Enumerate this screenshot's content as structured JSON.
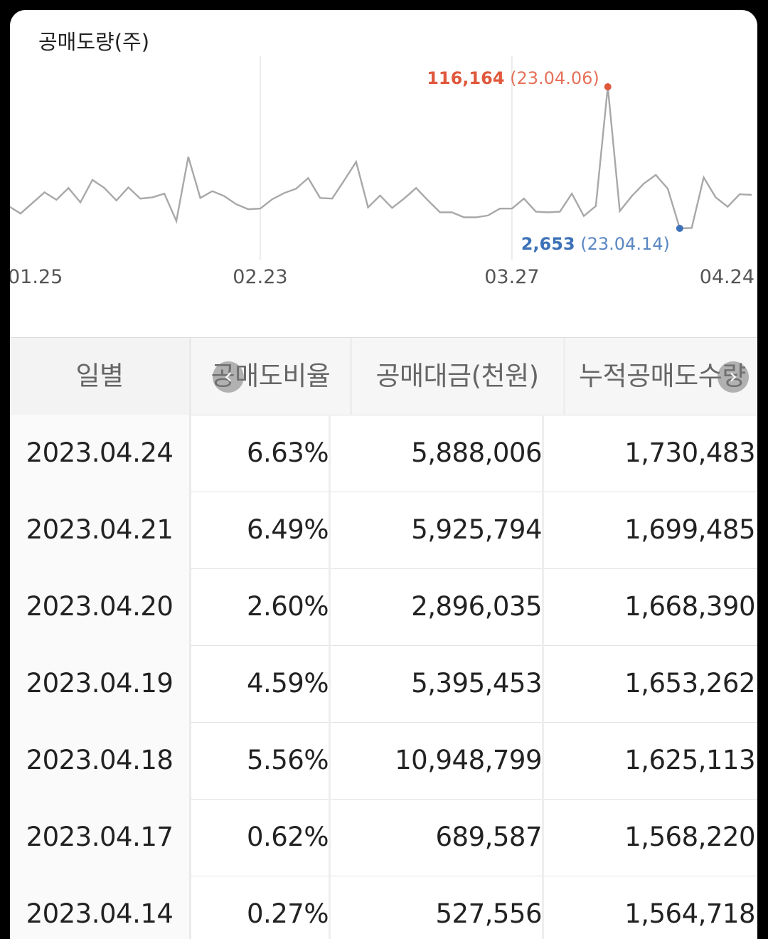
{
  "chart": {
    "title": "공매도량(주)",
    "x_ticks": [
      "01.25",
      "02.23",
      "03.27",
      "04.24"
    ],
    "max_annotation": {
      "value": "116,164",
      "date": "(23.04.06)",
      "color": "#e0583c"
    },
    "min_annotation": {
      "value": "2,653",
      "date": "(23.04.14)",
      "color": "#3d72b8"
    },
    "line_color": "#a8a8a8"
  },
  "chart_data": {
    "type": "line",
    "title": "공매도량(주)",
    "x_start": "01.25",
    "x_end": "04.24",
    "xticks": [
      "01.25",
      "02.23",
      "03.27",
      "04.24"
    ],
    "max_point": {
      "x": "23.04.06",
      "y": 116164
    },
    "min_point": {
      "x": "23.04.14",
      "y": 2653
    },
    "values": [
      20500,
      14500,
      23000,
      31500,
      25500,
      35000,
      23500,
      41500,
      35000,
      25000,
      35500,
      26500,
      27500,
      30500,
      8500,
      60000,
      27000,
      32500,
      28500,
      22000,
      18000,
      18500,
      26000,
      31000,
      34500,
      43000,
      27000,
      26500,
      41000,
      56000,
      19500,
      29000,
      19000,
      26500,
      35000,
      25000,
      15500,
      15500,
      11500,
      11500,
      13000,
      18500,
      18500,
      26500,
      16000,
      15500,
      16000,
      30500,
      12500,
      20500,
      116164,
      16500,
      28500,
      38500,
      45500,
      34500,
      2653,
      3000,
      43500,
      27500,
      20000,
      30000,
      29500
    ]
  },
  "table": {
    "headers": [
      "일별",
      "공매도비율",
      "공매대금(천원)",
      "누적공매도수량"
    ],
    "rows": [
      [
        "2023.04.24",
        "6.63%",
        "5,888,006",
        "1,730,483"
      ],
      [
        "2023.04.21",
        "6.49%",
        "5,925,794",
        "1,699,485"
      ],
      [
        "2023.04.20",
        "2.60%",
        "2,896,035",
        "1,668,390"
      ],
      [
        "2023.04.19",
        "4.59%",
        "5,395,453",
        "1,653,262"
      ],
      [
        "2023.04.18",
        "5.56%",
        "10,948,799",
        "1,625,113"
      ],
      [
        "2023.04.17",
        "0.62%",
        "689,587",
        "1,568,220"
      ],
      [
        "2023.04.14",
        "0.27%",
        "527,556",
        "1,564,718"
      ]
    ],
    "scroll_left_icon": "chevron-left-icon",
    "scroll_right_icon": "chevron-right-icon"
  }
}
